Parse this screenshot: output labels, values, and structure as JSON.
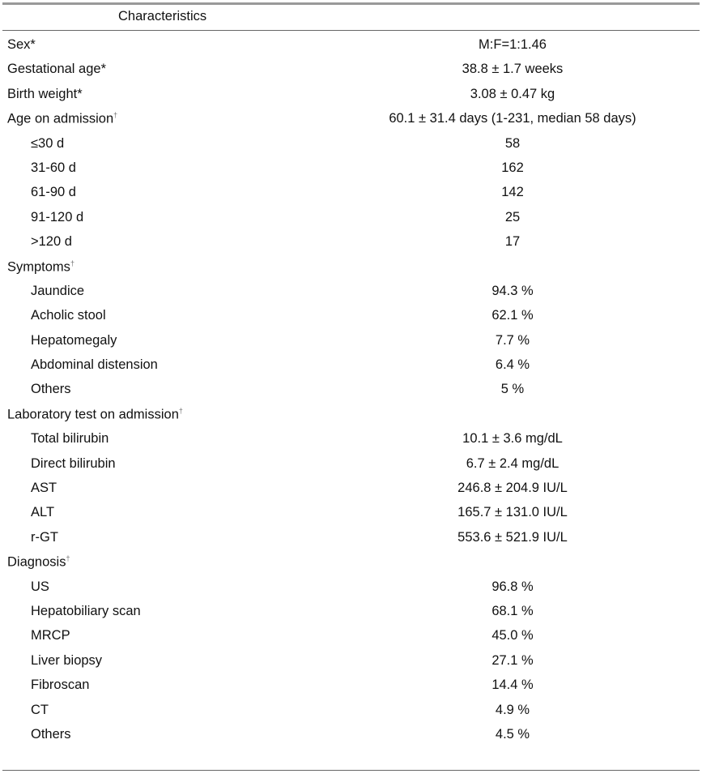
{
  "header": {
    "characteristics": "Characteristics"
  },
  "rows": [
    {
      "label": "Sex*",
      "value": "M:F=1:1.46",
      "sub": false
    },
    {
      "label": "Gestational age*",
      "value": "38.8 ± 1.7 weeks",
      "sub": false
    },
    {
      "label": "Birth weight*",
      "value": "3.08 ± 0.47 kg",
      "sub": false
    },
    {
      "label": "Age on admission",
      "mark": "†",
      "value": "60.1 ± 31.4 days (1-231, median 58 days)",
      "sub": false
    },
    {
      "label": "≤30 d",
      "value": "58",
      "sub": true
    },
    {
      "label": "31-60 d",
      "value": "162",
      "sub": true
    },
    {
      "label": "61-90 d",
      "value": "142",
      "sub": true
    },
    {
      "label": "91-120 d",
      "value": "25",
      "sub": true
    },
    {
      "label": ">120 d",
      "value": "17",
      "sub": true
    },
    {
      "label": "Symptoms",
      "mark": "†",
      "value": "",
      "sub": false
    },
    {
      "label": "Jaundice",
      "value": "94.3 %",
      "sub": true
    },
    {
      "label": "Acholic stool",
      "value": "62.1 %",
      "sub": true
    },
    {
      "label": "Hepatomegaly",
      "value": "7.7 %",
      "sub": true
    },
    {
      "label": "Abdominal distension",
      "value": "6.4 %",
      "sub": true
    },
    {
      "label": "Others",
      "value": "5 %",
      "sub": true
    },
    {
      "label": "Laboratory test on admission",
      "mark": "†",
      "value": "",
      "sub": false
    },
    {
      "label": "Total bilirubin",
      "value": "10.1 ± 3.6 mg/dL",
      "sub": true
    },
    {
      "label": "Direct bilirubin",
      "value": "6.7 ± 2.4 mg/dL",
      "sub": true
    },
    {
      "label": "AST",
      "value": "246.8 ± 204.9 IU/L",
      "sub": true
    },
    {
      "label": "ALT",
      "value": "165.7 ± 131.0 IU/L",
      "sub": true
    },
    {
      "label": "r-GT",
      "value": "553.6 ± 521.9 IU/L",
      "sub": true
    },
    {
      "label": "Diagnosis",
      "mark": "†",
      "value": "",
      "sub": false
    },
    {
      "label": "US",
      "value": "96.8 %",
      "sub": true
    },
    {
      "label": "Hepatobiliary scan",
      "value": "68.1 %",
      "sub": true
    },
    {
      "label": "MRCP",
      "value": "45.0 %",
      "sub": true
    },
    {
      "label": "Liver biopsy",
      "value": "27.1 %",
      "sub": true
    },
    {
      "label": "Fibroscan",
      "value": "14.4 %",
      "sub": true
    },
    {
      "label": "CT",
      "value": "4.9 %",
      "sub": true
    },
    {
      "label": "Others",
      "value": "4.5 %",
      "sub": true
    }
  ]
}
